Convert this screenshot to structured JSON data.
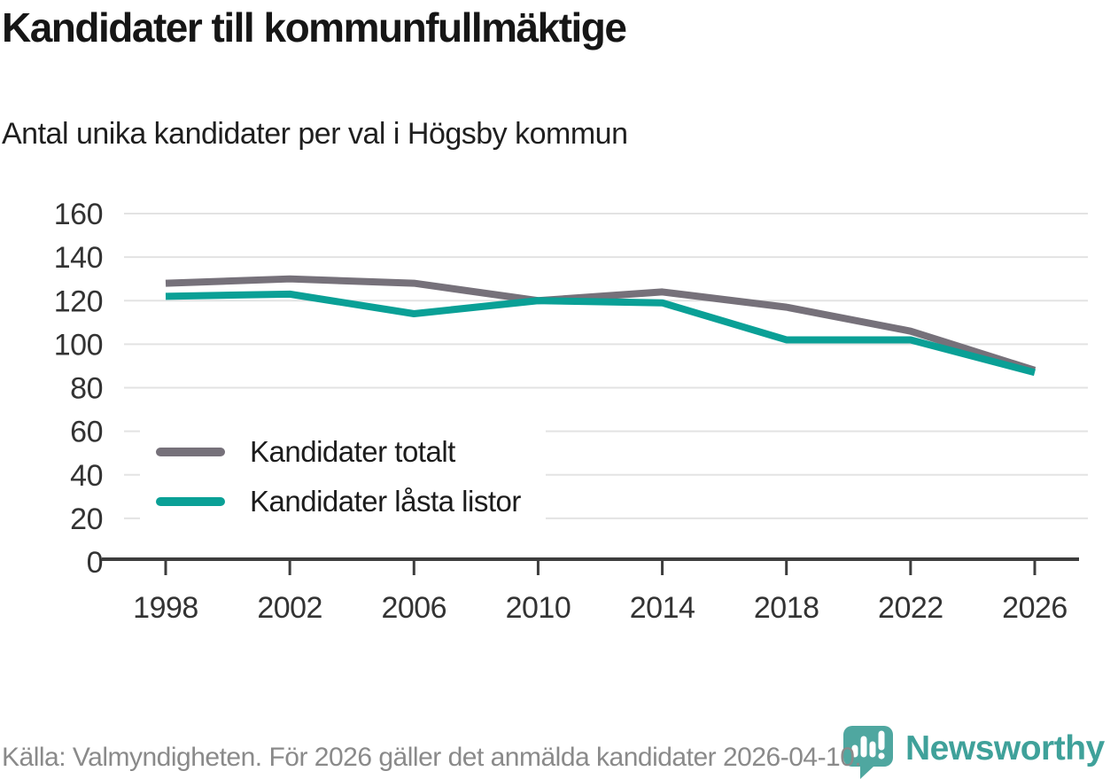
{
  "title": "Kandidater till kommunfullmäktige",
  "subtitle": "Antal unika kandidater per val i Högsby kommun",
  "footer": {
    "source": "Källa: Valmyndigheten. För 2026 gäller det anmälda kandidater 2026-04-10."
  },
  "logo": {
    "text": "Newsworthy"
  },
  "colors": {
    "total": "#76717a",
    "locked": "#0aa096",
    "grid": "#e3e3e3",
    "axis": "#3d3d3d",
    "tick_label": "#333333",
    "logo_icon": "#4fa7a0",
    "logo_text": "#3fa19a",
    "footer_text": "#8a8a8a"
  },
  "chart_data": {
    "type": "line",
    "x": [
      1998,
      2002,
      2006,
      2010,
      2014,
      2018,
      2022,
      2026
    ],
    "series": [
      {
        "name": "Kandidater totalt",
        "color_key": "total",
        "values": [
          128,
          130,
          128,
          120,
          124,
          117,
          106,
          88
        ]
      },
      {
        "name": "Kandidater låsta listor",
        "color_key": "locked",
        "values": [
          122,
          123,
          114,
          120,
          119,
          102,
          102,
          87
        ]
      }
    ],
    "title": "Kandidater till kommunfullmäktige",
    "xlabel": "",
    "ylabel": "",
    "ylim": [
      0,
      160
    ],
    "ytick_step": 20,
    "grid": "horizontal",
    "legend_position": "inside-lower-left"
  }
}
